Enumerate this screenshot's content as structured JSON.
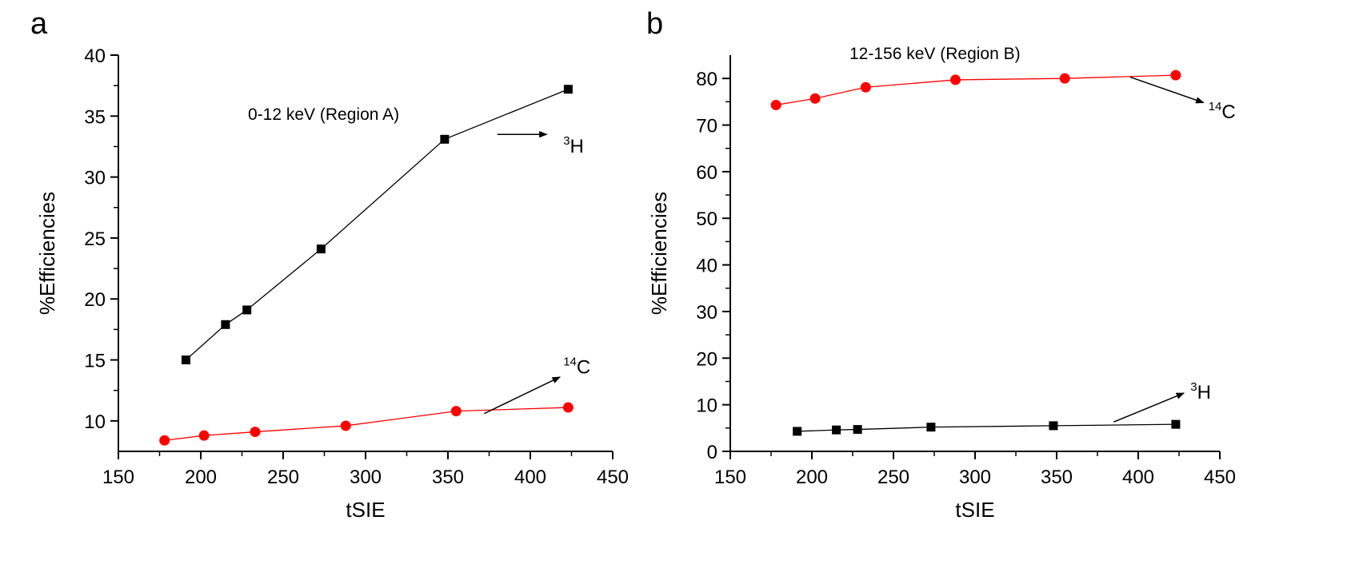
{
  "chart_data": [
    {
      "panel": "a",
      "type": "line",
      "title": "0-12 keV (Region A)",
      "xlabel": "tSIE",
      "ylabel": "%Efficiencies",
      "xlim": [
        150,
        450
      ],
      "ylim": [
        7.5,
        40
      ],
      "xticks": [
        150,
        200,
        250,
        300,
        350,
        400,
        450
      ],
      "yticks": [
        10,
        15,
        20,
        25,
        30,
        35,
        40
      ],
      "grid": false,
      "series": [
        {
          "name": "3H",
          "color": "#000000",
          "marker": "square",
          "x": [
            191,
            215,
            228,
            273,
            348,
            423
          ],
          "y": [
            15.0,
            17.9,
            19.1,
            24.1,
            33.1,
            37.2
          ]
        },
        {
          "name": "14C",
          "color": "#ff0000",
          "marker": "circle",
          "x": [
            178,
            202,
            233,
            288,
            355,
            423
          ],
          "y": [
            8.4,
            8.8,
            9.1,
            9.6,
            10.8,
            11.1
          ]
        }
      ],
      "annotations": [
        {
          "mass": "3",
          "element": "H",
          "arrow_from": [
            380,
            33.5
          ],
          "arrow_to": [
            410,
            33.5
          ],
          "at": [
            420,
            32.0
          ]
        },
        {
          "mass": "14",
          "element": "C",
          "arrow_from": [
            372,
            10.6
          ],
          "arrow_to": [
            418,
            13.6
          ],
          "at": [
            420,
            13.9
          ]
        }
      ]
    },
    {
      "panel": "b",
      "type": "line",
      "title": "12-156 keV (Region B)",
      "xlabel": "tSIE",
      "ylabel": "%Efficiencies",
      "xlim": [
        150,
        450
      ],
      "ylim": [
        0,
        85
      ],
      "xticks": [
        150,
        200,
        250,
        300,
        350,
        400,
        450
      ],
      "yticks": [
        0,
        10,
        20,
        30,
        40,
        50,
        60,
        70,
        80
      ],
      "grid": false,
      "series": [
        {
          "name": "14C",
          "color": "#ff0000",
          "marker": "circle",
          "x": [
            178,
            202,
            233,
            288,
            355,
            423
          ],
          "y": [
            74.3,
            75.7,
            78.1,
            79.7,
            80.0,
            80.7
          ]
        },
        {
          "name": "3H",
          "color": "#000000",
          "marker": "square",
          "x": [
            191,
            215,
            228,
            273,
            348,
            423
          ],
          "y": [
            4.3,
            4.6,
            4.7,
            5.2,
            5.5,
            5.8
          ]
        }
      ],
      "annotations": [
        {
          "mass": "14",
          "element": "C",
          "arrow_from": [
            395,
            80.3
          ],
          "arrow_to": [
            440,
            74.8
          ],
          "at": [
            443,
            71.5
          ]
        },
        {
          "mass": "3",
          "element": "H",
          "arrow_from": [
            385,
            6.3
          ],
          "arrow_to": [
            428,
            12.5
          ],
          "at": [
            432,
            11.3
          ]
        }
      ]
    }
  ]
}
